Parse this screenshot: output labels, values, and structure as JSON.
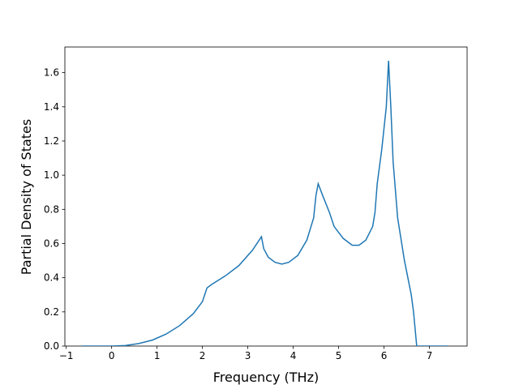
{
  "chart_data": {
    "type": "line",
    "xlabel": "Frequency (THz)",
    "ylabel": "Partial Density of States",
    "x": [
      -0.65,
      0,
      0.3,
      0.6,
      0.9,
      1.2,
      1.5,
      1.8,
      2.0,
      2.05,
      2.1,
      2.2,
      2.5,
      2.8,
      3.1,
      3.3,
      3.35,
      3.45,
      3.6,
      3.75,
      3.9,
      4.1,
      4.3,
      4.45,
      4.5,
      4.55,
      4.65,
      4.8,
      4.9,
      5.1,
      5.3,
      5.45,
      5.6,
      5.75,
      5.8,
      5.85,
      5.95,
      6.05,
      6.1,
      6.15,
      6.2,
      6.3,
      6.45,
      6.6,
      6.65,
      6.72,
      7.4
    ],
    "series": [
      {
        "color": "#1f77b4",
        "values": [
          0,
          0,
          0.003,
          0.015,
          0.035,
          0.07,
          0.12,
          0.19,
          0.26,
          0.3,
          0.34,
          0.36,
          0.41,
          0.47,
          0.56,
          0.64,
          0.57,
          0.52,
          0.49,
          0.48,
          0.49,
          0.53,
          0.62,
          0.75,
          0.88,
          0.95,
          0.88,
          0.78,
          0.7,
          0.63,
          0.59,
          0.59,
          0.62,
          0.7,
          0.78,
          0.95,
          1.15,
          1.4,
          1.67,
          1.4,
          1.08,
          0.75,
          0.5,
          0.3,
          0.2,
          0,
          0
        ]
      }
    ],
    "xlim": [
      -1.03,
      7.83
    ],
    "ylim": [
      0,
      1.75
    ],
    "xticks": [
      {
        "value": -1,
        "label": "−1"
      },
      0,
      1,
      2,
      3,
      4,
      5,
      6,
      7
    ],
    "yticks": [
      {
        "value": 0,
        "label": "0.0"
      },
      0.2,
      0.4,
      0.6,
      0.8,
      {
        "value": 1,
        "label": "1.0"
      },
      1.2,
      1.4,
      1.6
    ]
  }
}
